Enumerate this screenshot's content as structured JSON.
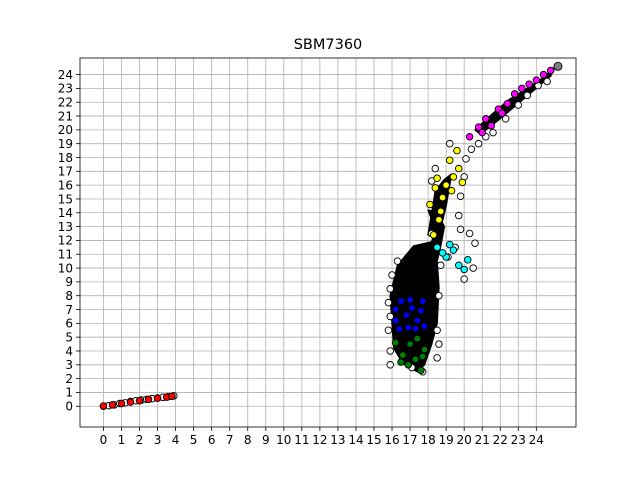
{
  "chart_data": {
    "type": "scatter",
    "title": "SBM7360",
    "xlabel": "",
    "ylabel": "",
    "xlim": [
      -1.3,
      26.2
    ],
    "ylim": [
      -1.5,
      25.2
    ],
    "xticks": [
      0,
      1,
      2,
      3,
      4,
      5,
      6,
      7,
      8,
      9,
      10,
      11,
      12,
      13,
      14,
      15,
      16,
      17,
      18,
      19,
      20,
      21,
      22,
      23,
      24
    ],
    "yticks": [
      0,
      1,
      2,
      3,
      4,
      5,
      6,
      7,
      8,
      9,
      10,
      11,
      12,
      13,
      14,
      15,
      16,
      17,
      18,
      19,
      20,
      21,
      22,
      23,
      24
    ],
    "grid": true,
    "colors": {
      "white": "#ffffff",
      "black": "#000000",
      "red": "#ff0000",
      "blue": "#0000ff",
      "green": "#008000",
      "cyan": "#00ffff",
      "yellow": "#ffff00",
      "magenta": "#ff00ff",
      "gray": "#808080"
    },
    "series": [
      {
        "color": "white",
        "points": [
          [
            0,
            0
          ],
          [
            0.3,
            0.05
          ],
          [
            0.6,
            0.1
          ],
          [
            0.9,
            0.2
          ],
          [
            1.2,
            0.25
          ],
          [
            1.5,
            0.35
          ],
          [
            1.8,
            0.4
          ],
          [
            2.1,
            0.45
          ],
          [
            2.4,
            0.5
          ],
          [
            2.7,
            0.55
          ],
          [
            3.0,
            0.6
          ],
          [
            3.3,
            0.65
          ],
          [
            3.6,
            0.7
          ],
          [
            3.9,
            0.75
          ],
          [
            15.9,
            3.0
          ],
          [
            15.9,
            4.0
          ],
          [
            15.8,
            5.5
          ],
          [
            15.9,
            6.5
          ],
          [
            15.8,
            7.5
          ],
          [
            15.9,
            8.5
          ],
          [
            16.0,
            9.5
          ],
          [
            16.3,
            10.5
          ],
          [
            17.1,
            2.8
          ],
          [
            17.7,
            2.5
          ],
          [
            18.5,
            3.5
          ],
          [
            18.6,
            4.5
          ],
          [
            18.5,
            5.5
          ],
          [
            18.6,
            8.0
          ],
          [
            18.7,
            10.2
          ],
          [
            19.1,
            10.8
          ],
          [
            18.2,
            12.5
          ],
          [
            19.5,
            11.5
          ],
          [
            19.8,
            12.8
          ],
          [
            20.3,
            12.5
          ],
          [
            20.6,
            11.8
          ],
          [
            20.0,
            9.2
          ],
          [
            20.5,
            10.0
          ],
          [
            19.7,
            13.8
          ],
          [
            19.8,
            15.2
          ],
          [
            20.0,
            16.6
          ],
          [
            20.1,
            17.9
          ],
          [
            20.4,
            18.6
          ],
          [
            19.2,
            19.0
          ],
          [
            18.4,
            17.2
          ],
          [
            18.2,
            16.3
          ],
          [
            20.8,
            19.0
          ],
          [
            21.2,
            19.5
          ],
          [
            21.6,
            19.8
          ],
          [
            22.3,
            20.8
          ],
          [
            23.0,
            21.8
          ],
          [
            23.5,
            22.5
          ],
          [
            24.1,
            23.2
          ],
          [
            24.6,
            23.5
          ]
        ]
      },
      {
        "color": "red",
        "points": [
          [
            0,
            0.02
          ],
          [
            0.5,
            0.1
          ],
          [
            1.0,
            0.2
          ],
          [
            1.5,
            0.3
          ],
          [
            2.0,
            0.4
          ],
          [
            2.5,
            0.5
          ],
          [
            3.0,
            0.58
          ],
          [
            3.5,
            0.66
          ],
          [
            3.8,
            0.72
          ]
        ]
      },
      {
        "color": "blue",
        "points": [
          [
            16.2,
            6.2
          ],
          [
            16.5,
            7.6
          ],
          [
            16.8,
            6.6
          ],
          [
            17.1,
            7.1
          ],
          [
            17.4,
            6.2
          ],
          [
            17.7,
            7.6
          ],
          [
            16.4,
            5.6
          ],
          [
            16.9,
            5.7
          ],
          [
            17.3,
            5.6
          ],
          [
            17.6,
            6.9
          ],
          [
            16.2,
            7.0
          ],
          [
            17.0,
            7.7
          ],
          [
            17.8,
            5.8
          ]
        ]
      },
      {
        "color": "green",
        "points": [
          [
            16.2,
            4.6
          ],
          [
            16.6,
            3.7
          ],
          [
            17.0,
            4.5
          ],
          [
            17.3,
            3.4
          ],
          [
            17.6,
            2.6
          ],
          [
            17.8,
            4.1
          ],
          [
            16.5,
            3.2
          ],
          [
            17.4,
            4.9
          ],
          [
            16.9,
            3.0
          ],
          [
            17.7,
            3.6
          ]
        ]
      },
      {
        "color": "cyan",
        "points": [
          [
            18.5,
            11.5
          ],
          [
            19.0,
            10.8
          ],
          [
            19.4,
            11.3
          ],
          [
            19.7,
            10.2
          ],
          [
            20.0,
            9.9
          ],
          [
            20.2,
            10.6
          ],
          [
            19.2,
            11.7
          ],
          [
            18.8,
            11.1
          ]
        ]
      },
      {
        "color": "yellow",
        "points": [
          [
            18.3,
            12.4
          ],
          [
            18.6,
            13.5
          ],
          [
            18.1,
            14.6
          ],
          [
            18.8,
            15.1
          ],
          [
            19.0,
            16.0
          ],
          [
            18.5,
            16.5
          ],
          [
            19.4,
            16.6
          ],
          [
            19.7,
            17.2
          ],
          [
            19.2,
            17.8
          ],
          [
            19.6,
            18.5
          ],
          [
            19.3,
            15.6
          ],
          [
            18.7,
            14.1
          ],
          [
            19.9,
            16.2
          ],
          [
            18.4,
            15.8
          ]
        ]
      },
      {
        "color": "magenta",
        "points": [
          [
            20.3,
            19.5
          ],
          [
            20.8,
            20.2
          ],
          [
            21.2,
            20.8
          ],
          [
            21.5,
            20.3
          ],
          [
            21.9,
            21.5
          ],
          [
            22.4,
            21.9
          ],
          [
            22.8,
            22.6
          ],
          [
            23.2,
            23.0
          ],
          [
            23.6,
            23.3
          ],
          [
            24.0,
            23.6
          ],
          [
            24.4,
            24.0
          ],
          [
            24.8,
            24.3
          ],
          [
            21.0,
            19.8
          ],
          [
            22.1,
            21.2
          ]
        ]
      },
      {
        "color": "gray",
        "points": [
          [
            25.2,
            24.6
          ]
        ]
      }
    ]
  }
}
